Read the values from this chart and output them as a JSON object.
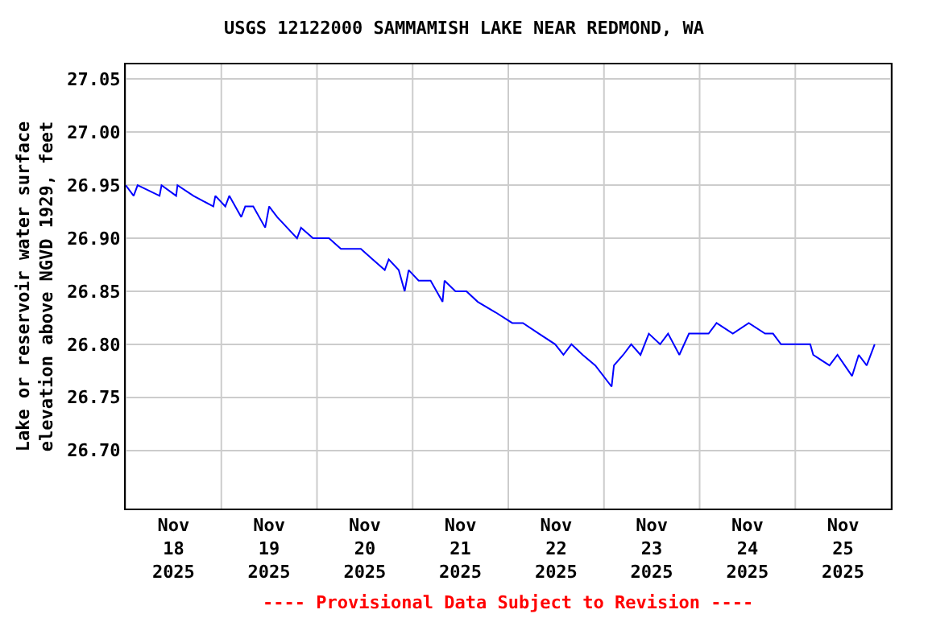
{
  "chart_data": {
    "type": "line",
    "title": "USGS 12122000 SAMMAMISH LAKE NEAR REDMOND, WA",
    "ylabel": "Lake or reservoir water surface\nelevation above NGVD 1929, feet",
    "annotations": [
      "---- Provisional Data Subject to Revision ----"
    ],
    "xlim": [
      "2025-11-18T00:00",
      "2025-11-26T00:00"
    ],
    "xticks": [
      {
        "value": "2025-11-18T00:00",
        "label": null
      },
      {
        "value": "2025-11-18T12:00",
        "label": "Nov\n18\n2025"
      },
      {
        "value": "2025-11-19T00:00",
        "label": null
      },
      {
        "value": "2025-11-19T12:00",
        "label": "Nov\n19\n2025"
      },
      {
        "value": "2025-11-20T00:00",
        "label": null
      },
      {
        "value": "2025-11-20T12:00",
        "label": "Nov\n20\n2025"
      },
      {
        "value": "2025-11-21T00:00",
        "label": null
      },
      {
        "value": "2025-11-21T12:00",
        "label": "Nov\n21\n2025"
      },
      {
        "value": "2025-11-22T00:00",
        "label": null
      },
      {
        "value": "2025-11-22T12:00",
        "label": "Nov\n22\n2025"
      },
      {
        "value": "2025-11-23T00:00",
        "label": null
      },
      {
        "value": "2025-11-23T12:00",
        "label": "Nov\n23\n2025"
      },
      {
        "value": "2025-11-24T00:00",
        "label": null
      },
      {
        "value": "2025-11-24T12:00",
        "label": "Nov\n24\n2025"
      },
      {
        "value": "2025-11-25T00:00",
        "label": null
      },
      {
        "value": "2025-11-25T12:00",
        "label": "Nov\n25\n2025"
      },
      {
        "value": "2025-11-26T00:00",
        "label": null
      }
    ],
    "ylim": [
      26.645,
      27.064
    ],
    "yticks": [
      {
        "value": 26.7,
        "label": "26.70"
      },
      {
        "value": 26.75,
        "label": "26.75"
      },
      {
        "value": 26.8,
        "label": "26.80"
      },
      {
        "value": 26.85,
        "label": "26.85"
      },
      {
        "value": 26.9,
        "label": "26.90"
      },
      {
        "value": 26.95,
        "label": "26.95"
      },
      {
        "value": 27.0,
        "label": "27.00"
      },
      {
        "value": 27.05,
        "label": "27.05"
      }
    ],
    "grid": true,
    "marker": "none",
    "line_style": "solid",
    "series": [
      {
        "color": "#0000ff",
        "x": [
          "2025-11-18T00:00",
          "2025-11-18T02:00",
          "2025-11-18T03:00",
          "2025-11-18T08:30",
          "2025-11-18T09:00",
          "2025-11-18T12:40",
          "2025-11-18T13:00",
          "2025-11-18T17:00",
          "2025-11-18T22:00",
          "2025-11-18T22:30",
          "2025-11-19T01:00",
          "2025-11-19T02:00",
          "2025-11-19T05:00",
          "2025-11-19T06:00",
          "2025-11-19T08:00",
          "2025-11-19T11:00",
          "2025-11-19T12:00",
          "2025-11-19T14:00",
          "2025-11-19T16:30",
          "2025-11-19T19:00",
          "2025-11-19T20:00",
          "2025-11-19T23:00",
          "2025-11-20T03:00",
          "2025-11-20T06:00",
          "2025-11-20T11:00",
          "2025-11-20T14:00",
          "2025-11-20T17:00",
          "2025-11-20T18:00",
          "2025-11-20T20:30",
          "2025-11-20T22:00",
          "2025-11-20T23:00",
          "2025-11-21T01:30",
          "2025-11-21T04:30",
          "2025-11-21T07:30",
          "2025-11-21T08:00",
          "2025-11-21T10:45",
          "2025-11-21T13:30",
          "2025-11-21T16:20",
          "2025-11-21T20:50",
          "2025-11-22T01:00",
          "2025-11-22T03:40",
          "2025-11-22T07:40",
          "2025-11-22T11:45",
          "2025-11-22T13:50",
          "2025-11-22T15:50",
          "2025-11-22T18:40",
          "2025-11-22T21:50",
          "2025-11-23T01:55",
          "2025-11-23T02:30",
          "2025-11-23T04:50",
          "2025-11-23T06:50",
          "2025-11-23T09:10",
          "2025-11-23T11:15",
          "2025-11-23T14:05",
          "2025-11-23T16:05",
          "2025-11-23T18:55",
          "2025-11-23T21:20",
          "2025-11-24T02:15",
          "2025-11-24T04:15",
          "2025-11-24T08:20",
          "2025-11-24T12:20",
          "2025-11-24T16:25",
          "2025-11-24T18:25",
          "2025-11-24T20:25",
          "2025-11-25T03:45",
          "2025-11-25T04:30",
          "2025-11-25T08:35",
          "2025-11-25T10:35",
          "2025-11-25T14:15",
          "2025-11-25T15:55",
          "2025-11-25T17:55",
          "2025-11-25T19:55"
        ],
        "values": [
          26.95,
          26.94,
          26.95,
          26.94,
          26.95,
          26.94,
          26.95,
          26.94,
          26.93,
          26.94,
          26.93,
          26.94,
          26.92,
          26.93,
          26.93,
          26.91,
          26.93,
          26.92,
          26.91,
          26.9,
          26.91,
          26.9,
          26.9,
          26.89,
          26.89,
          26.88,
          26.87,
          26.88,
          26.87,
          26.85,
          26.87,
          26.86,
          26.86,
          26.84,
          26.86,
          26.85,
          26.85,
          26.84,
          26.83,
          26.82,
          26.82,
          26.81,
          26.8,
          26.79,
          26.8,
          26.79,
          26.78,
          26.76,
          26.78,
          26.79,
          26.8,
          26.79,
          26.81,
          26.8,
          26.81,
          26.79,
          26.81,
          26.81,
          26.82,
          26.81,
          26.82,
          26.81,
          26.81,
          26.8,
          26.8,
          26.79,
          26.78,
          26.79,
          26.77,
          26.79,
          26.78,
          26.8
        ]
      }
    ]
  }
}
